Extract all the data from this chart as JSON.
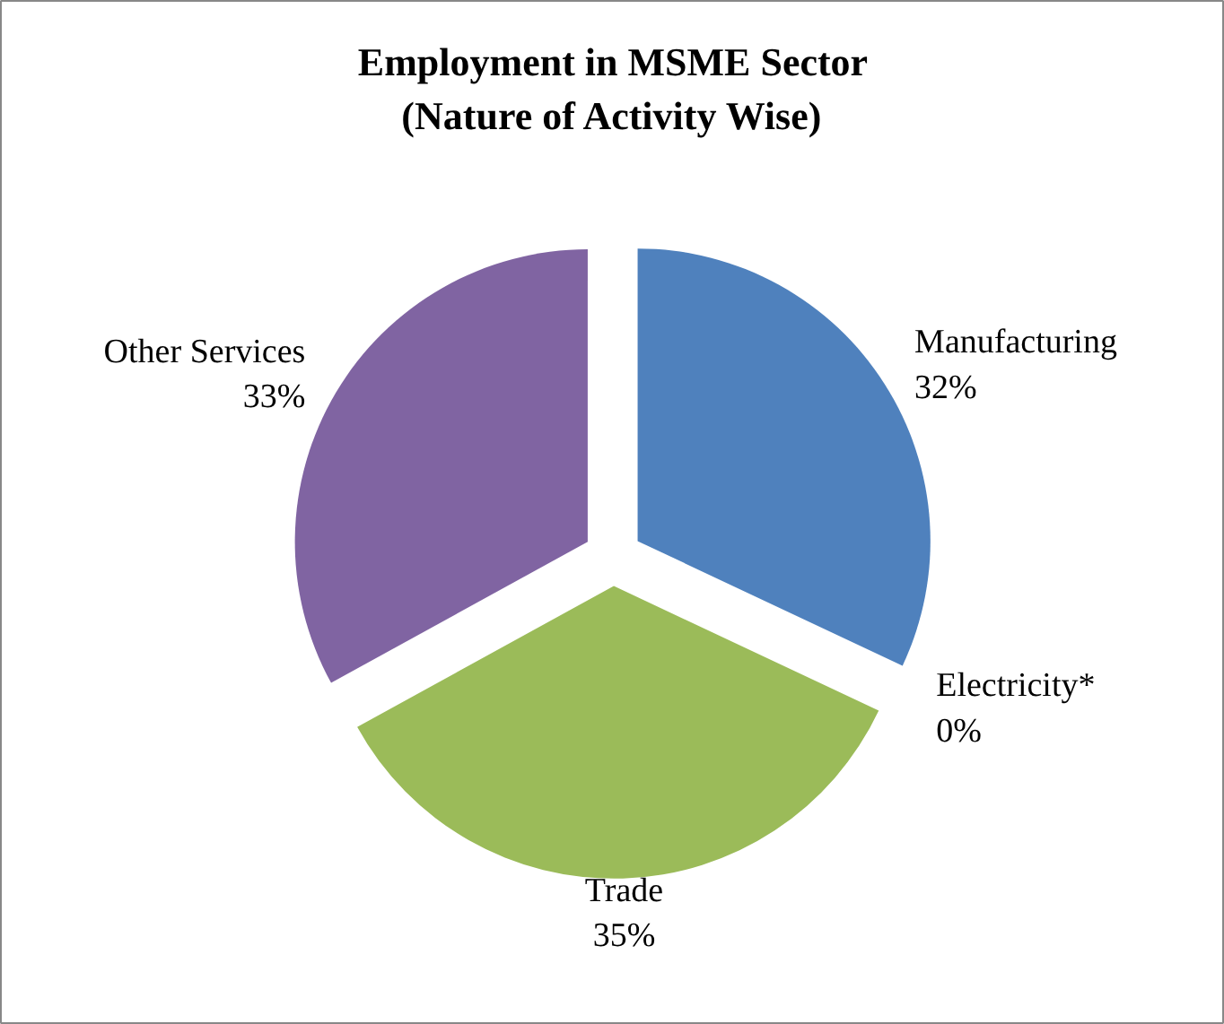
{
  "chart_data": {
    "type": "pie",
    "title": "Employment in MSME Sector\n(Nature of Activity Wise)",
    "categories": [
      "Manufacturing",
      "Electricity*",
      "Trade",
      "Other Services"
    ],
    "values": [
      32,
      0,
      35,
      33
    ],
    "value_labels": [
      "32%",
      "0%",
      "35%",
      "33%"
    ],
    "colors": [
      "#4f81bd",
      "#c0504d",
      "#9bbb59",
      "#8064a2"
    ]
  }
}
